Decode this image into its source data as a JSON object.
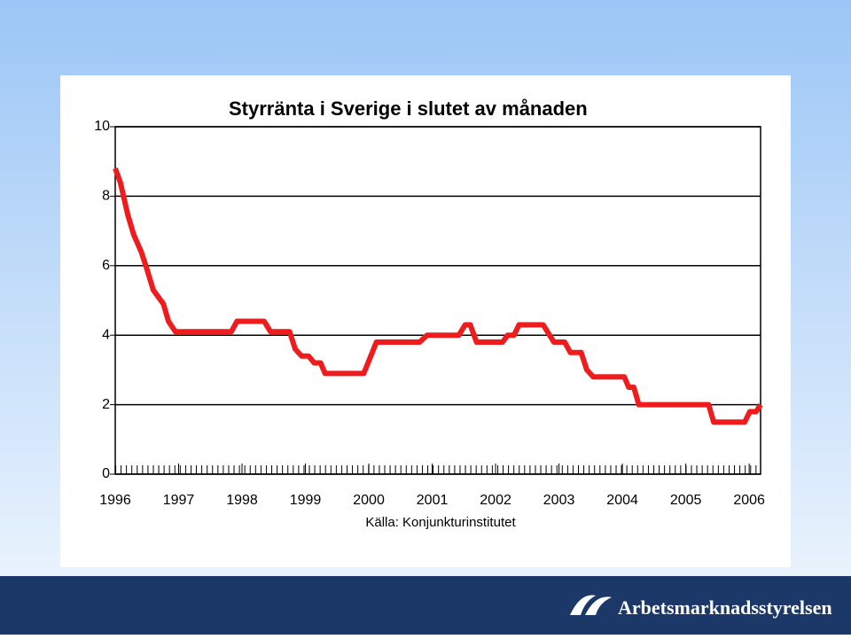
{
  "chart_data": {
    "type": "line",
    "title": "Styrränta i Sverige i slutet av månaden",
    "source": "Källa: Konjunkturinstitutet",
    "x": [
      1996.0,
      1996.08,
      1996.2,
      1996.29,
      1996.41,
      1996.5,
      1996.6,
      1996.76,
      1996.84,
      1996.95,
      1997.83,
      1997.92,
      1998.35,
      1998.45,
      1998.75,
      1998.84,
      1998.94,
      1999.05,
      1999.14,
      1999.24,
      1999.31,
      1999.92,
      2000.12,
      2000.8,
      2000.92,
      2001.42,
      2001.52,
      2001.6,
      2001.7,
      2002.11,
      2002.19,
      2002.29,
      2002.37,
      2002.75,
      2002.92,
      2003.09,
      2003.18,
      2003.35,
      2003.44,
      2003.54,
      2004.03,
      2004.1,
      2004.18,
      2004.26,
      2005.36,
      2005.44,
      2005.93,
      2006.01,
      2006.11,
      2006.18
    ],
    "series": [
      {
        "color": "#ee1c1c",
        "values": [
          8.8,
          8.4,
          7.45,
          6.9,
          6.4,
          5.9,
          5.3,
          4.9,
          4.4,
          4.1,
          4.1,
          4.4,
          4.4,
          4.1,
          4.1,
          3.6,
          3.4,
          3.4,
          3.2,
          3.2,
          2.9,
          2.9,
          3.8,
          3.8,
          4.0,
          4.0,
          4.3,
          4.3,
          3.8,
          3.8,
          4.0,
          4.0,
          4.3,
          4.3,
          3.8,
          3.8,
          3.5,
          3.5,
          3.0,
          2.8,
          2.8,
          2.5,
          2.5,
          2.0,
          2.0,
          1.5,
          1.5,
          1.8,
          1.8,
          2.0
        ]
      }
    ],
    "xlim": [
      1996,
      2006.18
    ],
    "xticks": [
      1996,
      1997,
      1998,
      1999,
      2000,
      2001,
      2002,
      2003,
      2004,
      2005,
      2006
    ],
    "ylim": [
      0,
      10
    ],
    "yticks": [
      0,
      2,
      4,
      6,
      8,
      10
    ],
    "grid": true
  },
  "footer": {
    "logo": "Arbetsmarknadsstyrelsen"
  }
}
